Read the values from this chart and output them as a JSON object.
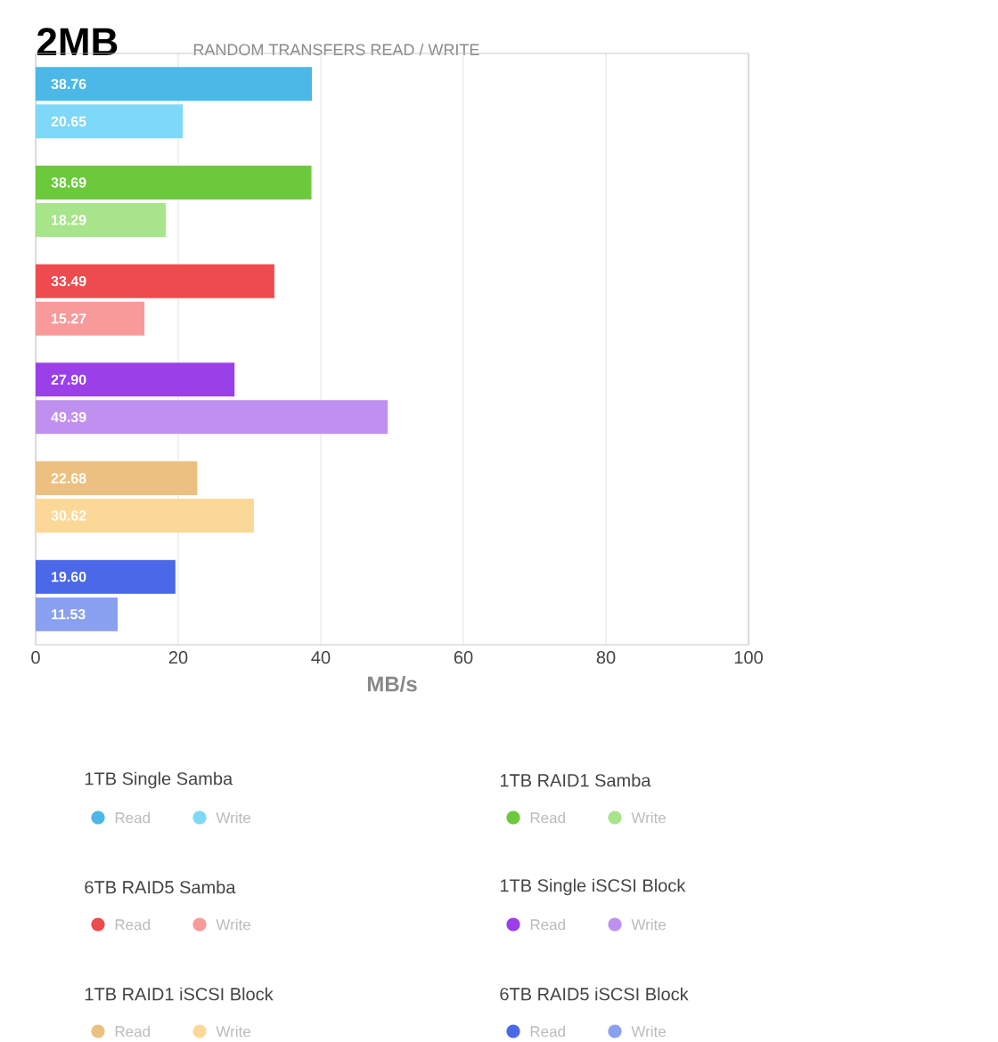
{
  "chart_data": {
    "type": "bar",
    "orientation": "horizontal",
    "title": "2MB",
    "subtitle": "RANDOM TRANSFERS READ / WRITE",
    "xlabel": "MB/s",
    "categories": [
      null,
      null,
      null,
      null,
      null,
      null
    ],
    "annotations": [
      "1TB Single Samba",
      "1TB RAID1 Samba",
      "6TB RAID5 Samba",
      "1TB Single iSCSI Block",
      "1TB RAID1 iSCSI Block",
      "6TB RAID5 iSCSI Block"
    ],
    "series": [
      {
        "name": "Read",
        "colors": [
          "#4cb8e8",
          "#6cc93c",
          "#ee4b4f",
          "#9b40e8",
          "#ecc080",
          "#4a68e8"
        ],
        "values": [
          38.76,
          38.69,
          33.49,
          27.9,
          22.68,
          19.6
        ],
        "value_labels": [
          "38.76",
          "38.69",
          "33.49",
          "27.90",
          "22.68",
          "19.60"
        ]
      },
      {
        "name": "Write",
        "colors": [
          "#7ed8f8",
          "#a8e48a",
          "#f89a9a",
          "#c090f0",
          "#fcd898",
          "#8aa0f0"
        ],
        "values": [
          20.65,
          18.29,
          15.27,
          49.39,
          30.62,
          11.53
        ],
        "value_labels": [
          "20.65",
          "18.29",
          "15.27",
          "49.39",
          "30.62",
          "11.53"
        ]
      }
    ],
    "xlim": [
      0,
      100
    ],
    "xticks": [
      0,
      20,
      40,
      60,
      80,
      100
    ],
    "grid": "x",
    "legend": "bottom",
    "tick_labels": "x"
  }
}
